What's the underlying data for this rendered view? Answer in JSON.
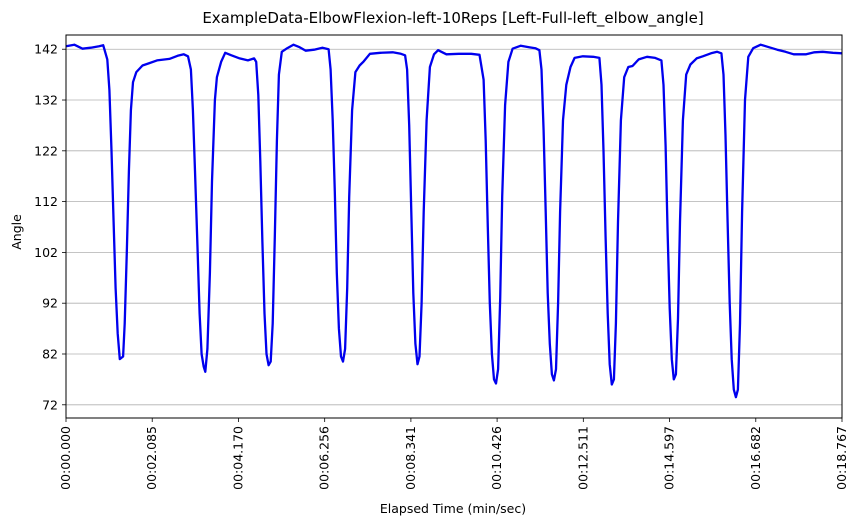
{
  "chart_data": {
    "type": "line",
    "title": "ExampleData-ElbowFlexion-left-10Reps [Left-Full-left_elbow_angle]",
    "xlabel": "Elapsed Time (min/sec)",
    "ylabel": "Angle",
    "xlim": [
      0,
      18.767
    ],
    "ylim": [
      69.4,
      144.8
    ],
    "grid": "y",
    "yticks": [
      72,
      82,
      92,
      102,
      112,
      122,
      132,
      142
    ],
    "ytick_labels": [
      "72",
      "82",
      "92",
      "102",
      "112",
      "122",
      "132",
      "142"
    ],
    "xticks": [
      0,
      2.085,
      4.17,
      6.256,
      8.341,
      10.426,
      12.511,
      14.597,
      16.682,
      18.767
    ],
    "xtick_labels": [
      "00:00.000",
      "00:02.085",
      "00:04.170",
      "00:06.256",
      "00:08.341",
      "00:10.426",
      "00:12.511",
      "00:14.597",
      "00:16.682",
      "00:18.767"
    ],
    "series": [
      {
        "color": "#0000ee",
        "points": [
          [
            0.0,
            142.6
          ],
          [
            0.2,
            142.9
          ],
          [
            0.4,
            142.1
          ],
          [
            0.6,
            142.3
          ],
          [
            0.8,
            142.6
          ],
          [
            0.9,
            142.8
          ],
          [
            1.0,
            140.0
          ],
          [
            1.05,
            134.0
          ],
          [
            1.1,
            122.0
          ],
          [
            1.15,
            108.0
          ],
          [
            1.2,
            95.0
          ],
          [
            1.25,
            86.0
          ],
          [
            1.3,
            81.0
          ],
          [
            1.38,
            81.5
          ],
          [
            1.42,
            88.0
          ],
          [
            1.47,
            102.0
          ],
          [
            1.52,
            118.0
          ],
          [
            1.57,
            130.0
          ],
          [
            1.62,
            135.5
          ],
          [
            1.7,
            137.5
          ],
          [
            1.85,
            138.8
          ],
          [
            2.0,
            139.2
          ],
          [
            2.2,
            139.8
          ],
          [
            2.5,
            140.1
          ],
          [
            2.7,
            140.7
          ],
          [
            2.85,
            141.0
          ],
          [
            2.95,
            140.6
          ],
          [
            3.02,
            138.0
          ],
          [
            3.07,
            130.0
          ],
          [
            3.12,
            118.0
          ],
          [
            3.18,
            103.0
          ],
          [
            3.23,
            90.0
          ],
          [
            3.28,
            82.0
          ],
          [
            3.33,
            79.5
          ],
          [
            3.37,
            78.5
          ],
          [
            3.42,
            83.0
          ],
          [
            3.48,
            98.0
          ],
          [
            3.53,
            116.0
          ],
          [
            3.6,
            132.0
          ],
          [
            3.65,
            136.5
          ],
          [
            3.75,
            139.5
          ],
          [
            3.85,
            141.3
          ],
          [
            4.0,
            140.8
          ],
          [
            4.2,
            140.2
          ],
          [
            4.4,
            139.8
          ],
          [
            4.55,
            140.2
          ],
          [
            4.6,
            139.5
          ],
          [
            4.65,
            133.0
          ],
          [
            4.7,
            120.0
          ],
          [
            4.75,
            104.0
          ],
          [
            4.8,
            90.0
          ],
          [
            4.85,
            82.0
          ],
          [
            4.9,
            79.8
          ],
          [
            4.95,
            80.5
          ],
          [
            5.0,
            88.0
          ],
          [
            5.05,
            105.0
          ],
          [
            5.1,
            124.0
          ],
          [
            5.15,
            137.0
          ],
          [
            5.22,
            141.5
          ],
          [
            5.35,
            142.2
          ],
          [
            5.5,
            142.9
          ],
          [
            5.65,
            142.4
          ],
          [
            5.8,
            141.7
          ],
          [
            6.0,
            141.9
          ],
          [
            6.2,
            142.3
          ],
          [
            6.35,
            142.0
          ],
          [
            6.4,
            138.0
          ],
          [
            6.45,
            128.0
          ],
          [
            6.5,
            114.0
          ],
          [
            6.55,
            98.0
          ],
          [
            6.6,
            87.0
          ],
          [
            6.65,
            81.5
          ],
          [
            6.7,
            80.5
          ],
          [
            6.75,
            83.0
          ],
          [
            6.8,
            95.0
          ],
          [
            6.85,
            113.0
          ],
          [
            6.92,
            130.0
          ],
          [
            7.0,
            137.5
          ],
          [
            7.1,
            138.8
          ],
          [
            7.2,
            139.6
          ],
          [
            7.35,
            141.1
          ],
          [
            7.6,
            141.3
          ],
          [
            7.9,
            141.4
          ],
          [
            8.1,
            141.1
          ],
          [
            8.2,
            140.8
          ],
          [
            8.25,
            138.0
          ],
          [
            8.3,
            127.0
          ],
          [
            8.35,
            110.0
          ],
          [
            8.4,
            94.0
          ],
          [
            8.45,
            84.0
          ],
          [
            8.5,
            80.0
          ],
          [
            8.55,
            81.5
          ],
          [
            8.6,
            92.0
          ],
          [
            8.65,
            110.0
          ],
          [
            8.72,
            128.0
          ],
          [
            8.8,
            138.5
          ],
          [
            8.9,
            141.0
          ],
          [
            9.0,
            141.8
          ],
          [
            9.2,
            141.0
          ],
          [
            9.5,
            141.1
          ],
          [
            9.8,
            141.1
          ],
          [
            10.0,
            140.9
          ],
          [
            10.1,
            136.0
          ],
          [
            10.15,
            124.0
          ],
          [
            10.2,
            107.0
          ],
          [
            10.25,
            92.0
          ],
          [
            10.3,
            82.0
          ],
          [
            10.35,
            77.0
          ],
          [
            10.4,
            76.2
          ],
          [
            10.45,
            79.0
          ],
          [
            10.5,
            93.0
          ],
          [
            10.55,
            113.0
          ],
          [
            10.62,
            131.0
          ],
          [
            10.7,
            139.5
          ],
          [
            10.8,
            142.1
          ],
          [
            11.0,
            142.7
          ],
          [
            11.2,
            142.4
          ],
          [
            11.35,
            142.2
          ],
          [
            11.45,
            141.8
          ],
          [
            11.5,
            138.0
          ],
          [
            11.55,
            126.0
          ],
          [
            11.6,
            110.0
          ],
          [
            11.65,
            94.0
          ],
          [
            11.7,
            84.0
          ],
          [
            11.75,
            78.0
          ],
          [
            11.8,
            76.8
          ],
          [
            11.85,
            79.0
          ],
          [
            11.9,
            92.0
          ],
          [
            11.95,
            110.0
          ],
          [
            12.02,
            128.0
          ],
          [
            12.1,
            135.0
          ],
          [
            12.2,
            138.5
          ],
          [
            12.3,
            140.3
          ],
          [
            12.5,
            140.6
          ],
          [
            12.75,
            140.5
          ],
          [
            12.9,
            140.3
          ],
          [
            12.95,
            135.0
          ],
          [
            13.0,
            122.0
          ],
          [
            13.05,
            105.0
          ],
          [
            13.1,
            90.0
          ],
          [
            13.15,
            80.0
          ],
          [
            13.2,
            76.0
          ],
          [
            13.25,
            77.0
          ],
          [
            13.3,
            88.0
          ],
          [
            13.35,
            108.0
          ],
          [
            13.42,
            128.0
          ],
          [
            13.5,
            136.5
          ],
          [
            13.6,
            138.5
          ],
          [
            13.7,
            138.7
          ],
          [
            13.85,
            140.0
          ],
          [
            14.05,
            140.5
          ],
          [
            14.25,
            140.3
          ],
          [
            14.4,
            139.8
          ],
          [
            14.45,
            135.0
          ],
          [
            14.5,
            123.0
          ],
          [
            14.55,
            106.0
          ],
          [
            14.6,
            91.0
          ],
          [
            14.65,
            81.0
          ],
          [
            14.7,
            77.0
          ],
          [
            14.75,
            78.0
          ],
          [
            14.8,
            89.0
          ],
          [
            14.85,
            108.0
          ],
          [
            14.92,
            128.0
          ],
          [
            15.0,
            137.0
          ],
          [
            15.1,
            139.0
          ],
          [
            15.25,
            140.2
          ],
          [
            15.4,
            140.6
          ],
          [
            15.6,
            141.2
          ],
          [
            15.75,
            141.5
          ],
          [
            15.85,
            141.2
          ],
          [
            15.9,
            137.0
          ],
          [
            15.95,
            125.0
          ],
          [
            16.0,
            108.0
          ],
          [
            16.05,
            92.0
          ],
          [
            16.1,
            81.0
          ],
          [
            16.15,
            75.0
          ],
          [
            16.2,
            73.5
          ],
          [
            16.25,
            75.0
          ],
          [
            16.3,
            88.0
          ],
          [
            16.35,
            110.0
          ],
          [
            16.42,
            132.0
          ],
          [
            16.5,
            140.5
          ],
          [
            16.62,
            142.2
          ],
          [
            16.8,
            142.9
          ],
          [
            17.0,
            142.4
          ],
          [
            17.2,
            141.9
          ],
          [
            17.4,
            141.5
          ],
          [
            17.6,
            141.0
          ],
          [
            17.9,
            141.0
          ],
          [
            18.1,
            141.4
          ],
          [
            18.3,
            141.5
          ],
          [
            18.55,
            141.3
          ],
          [
            18.767,
            141.2
          ]
        ]
      }
    ]
  }
}
